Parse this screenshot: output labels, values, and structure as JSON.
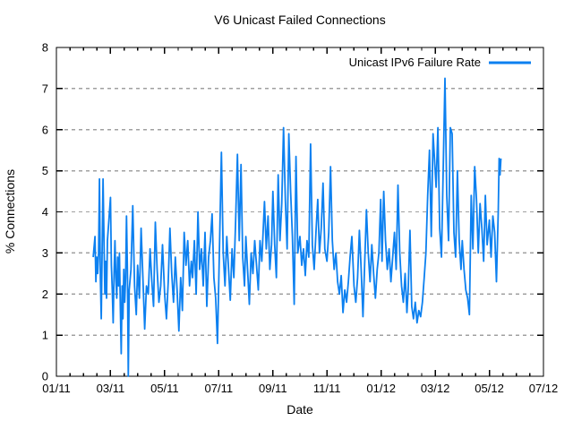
{
  "chart_data": {
    "type": "line",
    "title": "V6 Unicast Failed Connections",
    "xlabel": "Date",
    "ylabel": "% Connections",
    "legend": {
      "label": "Unicast IPv6 Failure Rate",
      "position": "top-right-inside"
    },
    "grid": "horizontal-dashed",
    "ylim": [
      0,
      8
    ],
    "y_ticks": [
      0,
      1,
      2,
      3,
      4,
      5,
      6,
      7,
      8
    ],
    "x_range_months": [
      "01/11",
      "07/12"
    ],
    "x_tick_labels": [
      "01/11",
      "03/11",
      "05/11",
      "07/11",
      "09/11",
      "11/11",
      "01/12",
      "03/12",
      "05/12",
      "07/12"
    ],
    "x_minor_tick_interval_months": 0.5,
    "colors": {
      "line": "#0C80F0",
      "grid": "#A0A0A0",
      "axis": "#000000",
      "text": "#000000",
      "background": "#FFFFFF"
    },
    "series": [
      {
        "name": "Unicast IPv6 Failure Rate",
        "points": [
          [
            "2011-02-12",
            2.9
          ],
          [
            "2011-02-14",
            3.4
          ],
          [
            "2011-02-15",
            2.3
          ],
          [
            "2011-02-16",
            2.9
          ],
          [
            "2011-02-17",
            2.5
          ],
          [
            "2011-02-18",
            3.0
          ],
          [
            "2011-02-19",
            4.8
          ],
          [
            "2011-02-20",
            2.4
          ],
          [
            "2011-02-21",
            1.4
          ],
          [
            "2011-02-22",
            3.1
          ],
          [
            "2011-02-23",
            4.8
          ],
          [
            "2011-02-24",
            3.4
          ],
          [
            "2011-02-25",
            2.0
          ],
          [
            "2011-02-26",
            2.8
          ],
          [
            "2011-02-27",
            1.9
          ],
          [
            "2011-02-28",
            3.3
          ],
          [
            "2011-03-01",
            4.35
          ],
          [
            "2011-03-02",
            2.7
          ],
          [
            "2011-03-03",
            2.1
          ],
          [
            "2011-03-04",
            1.3
          ],
          [
            "2011-03-05",
            2.5
          ],
          [
            "2011-03-06",
            3.3
          ],
          [
            "2011-03-07",
            2.4
          ],
          [
            "2011-03-08",
            1.9
          ],
          [
            "2011-03-09",
            2.9
          ],
          [
            "2011-03-10",
            2.2
          ],
          [
            "2011-03-11",
            3.0
          ],
          [
            "2011-03-12",
            1.7
          ],
          [
            "2011-03-13",
            0.55
          ],
          [
            "2011-03-14",
            2.2
          ],
          [
            "2011-03-15",
            1.4
          ],
          [
            "2011-03-16",
            2.6
          ],
          [
            "2011-03-17",
            1.8
          ],
          [
            "2011-03-18",
            2.4
          ],
          [
            "2011-03-19",
            3.9
          ],
          [
            "2011-03-20",
            2.6
          ],
          [
            "2011-03-21",
            0.0
          ],
          [
            "2011-03-22",
            2.1
          ],
          [
            "2011-03-24",
            2.6
          ],
          [
            "2011-03-26",
            4.15
          ],
          [
            "2011-03-28",
            2.2
          ],
          [
            "2011-03-30",
            1.5
          ],
          [
            "2011-04-01",
            2.7
          ],
          [
            "2011-04-03",
            1.9
          ],
          [
            "2011-04-05",
            3.6
          ],
          [
            "2011-04-07",
            2.4
          ],
          [
            "2011-04-09",
            1.15
          ],
          [
            "2011-04-11",
            2.2
          ],
          [
            "2011-04-13",
            2.0
          ],
          [
            "2011-04-15",
            3.1
          ],
          [
            "2011-04-17",
            2.3
          ],
          [
            "2011-04-19",
            1.7
          ],
          [
            "2011-04-21",
            3.75
          ],
          [
            "2011-04-23",
            2.6
          ],
          [
            "2011-04-25",
            1.8
          ],
          [
            "2011-04-27",
            2.2
          ],
          [
            "2011-04-29",
            3.2
          ],
          [
            "2011-05-01",
            2.0
          ],
          [
            "2011-05-03",
            1.4
          ],
          [
            "2011-05-05",
            2.3
          ],
          [
            "2011-05-07",
            3.6
          ],
          [
            "2011-05-09",
            2.5
          ],
          [
            "2011-05-11",
            1.8
          ],
          [
            "2011-05-13",
            2.9
          ],
          [
            "2011-05-15",
            2.1
          ],
          [
            "2011-05-17",
            1.1
          ],
          [
            "2011-05-19",
            2.4
          ],
          [
            "2011-05-21",
            1.6
          ],
          [
            "2011-05-23",
            3.5
          ],
          [
            "2011-05-25",
            2.7
          ],
          [
            "2011-05-27",
            3.3
          ],
          [
            "2011-05-29",
            2.2
          ],
          [
            "2011-05-31",
            2.8
          ],
          [
            "2011-06-02",
            2.4
          ],
          [
            "2011-06-04",
            3.3
          ],
          [
            "2011-06-06",
            2.0
          ],
          [
            "2011-06-08",
            4.0
          ],
          [
            "2011-06-10",
            2.6
          ],
          [
            "2011-06-12",
            3.1
          ],
          [
            "2011-06-14",
            2.2
          ],
          [
            "2011-06-16",
            3.5
          ],
          [
            "2011-06-18",
            1.7
          ],
          [
            "2011-06-20",
            2.9
          ],
          [
            "2011-06-22",
            3.3
          ],
          [
            "2011-06-24",
            3.95
          ],
          [
            "2011-06-26",
            2.4
          ],
          [
            "2011-06-28",
            1.9
          ],
          [
            "2011-06-30",
            0.8
          ],
          [
            "2011-07-02",
            3.3
          ],
          [
            "2011-07-04",
            5.45
          ],
          [
            "2011-07-06",
            3.0
          ],
          [
            "2011-07-08",
            2.2
          ],
          [
            "2011-07-10",
            3.4
          ],
          [
            "2011-07-12",
            2.6
          ],
          [
            "2011-07-14",
            1.85
          ],
          [
            "2011-07-16",
            3.1
          ],
          [
            "2011-07-18",
            2.4
          ],
          [
            "2011-07-20",
            3.8
          ],
          [
            "2011-07-22",
            5.4
          ],
          [
            "2011-07-24",
            3.3
          ],
          [
            "2011-07-26",
            5.15
          ],
          [
            "2011-07-28",
            2.9
          ],
          [
            "2011-07-30",
            2.2
          ],
          [
            "2011-08-01",
            3.4
          ],
          [
            "2011-08-03",
            2.6
          ],
          [
            "2011-08-05",
            1.75
          ],
          [
            "2011-08-07",
            3.0
          ],
          [
            "2011-08-09",
            2.5
          ],
          [
            "2011-08-11",
            3.3
          ],
          [
            "2011-08-13",
            2.7
          ],
          [
            "2011-08-15",
            2.1
          ],
          [
            "2011-08-17",
            3.3
          ],
          [
            "2011-08-19",
            2.8
          ],
          [
            "2011-08-22",
            4.25
          ],
          [
            "2011-08-24",
            3.1
          ],
          [
            "2011-08-26",
            3.9
          ],
          [
            "2011-08-28",
            2.6
          ],
          [
            "2011-08-30",
            3.2
          ],
          [
            "2011-09-01",
            4.5
          ],
          [
            "2011-09-03",
            3.2
          ],
          [
            "2011-09-05",
            2.4
          ],
          [
            "2011-09-07",
            4.9
          ],
          [
            "2011-09-09",
            3.3
          ],
          [
            "2011-09-11",
            4.2
          ],
          [
            "2011-09-13",
            6.05
          ],
          [
            "2011-09-15",
            4.3
          ],
          [
            "2011-09-17",
            3.1
          ],
          [
            "2011-09-19",
            5.9
          ],
          [
            "2011-09-21",
            4.5
          ],
          [
            "2011-09-23",
            3.4
          ],
          [
            "2011-09-25",
            1.75
          ],
          [
            "2011-09-27",
            5.35
          ],
          [
            "2011-09-29",
            3.0
          ],
          [
            "2011-10-01",
            3.4
          ],
          [
            "2011-10-03",
            2.7
          ],
          [
            "2011-10-05",
            3.1
          ],
          [
            "2011-10-07",
            2.45
          ],
          [
            "2011-10-09",
            3.3
          ],
          [
            "2011-10-11",
            2.9
          ],
          [
            "2011-10-13",
            5.65
          ],
          [
            "2011-10-15",
            3.2
          ],
          [
            "2011-10-17",
            2.6
          ],
          [
            "2011-10-19",
            3.5
          ],
          [
            "2011-10-21",
            4.3
          ],
          [
            "2011-10-23",
            3.0
          ],
          [
            "2011-10-25",
            3.6
          ],
          [
            "2011-10-27",
            4.7
          ],
          [
            "2011-10-29",
            3.1
          ],
          [
            "2011-11-01",
            2.8
          ],
          [
            "2011-11-03",
            3.5
          ],
          [
            "2011-11-05",
            5.1
          ],
          [
            "2011-11-07",
            3.3
          ],
          [
            "2011-11-09",
            2.6
          ],
          [
            "2011-11-11",
            3.0
          ],
          [
            "2011-11-13",
            2.3
          ],
          [
            "2011-11-15",
            2.0
          ],
          [
            "2011-11-17",
            2.45
          ],
          [
            "2011-11-19",
            1.55
          ],
          [
            "2011-11-21",
            2.1
          ],
          [
            "2011-11-23",
            1.8
          ],
          [
            "2011-11-25",
            2.3
          ],
          [
            "2011-11-27",
            2.9
          ],
          [
            "2011-11-29",
            3.4
          ],
          [
            "2011-12-01",
            2.2
          ],
          [
            "2011-12-03",
            1.8
          ],
          [
            "2011-12-05",
            2.4
          ],
          [
            "2011-12-07",
            3.55
          ],
          [
            "2011-12-09",
            2.6
          ],
          [
            "2011-12-11",
            1.45
          ],
          [
            "2011-12-13",
            2.8
          ],
          [
            "2011-12-15",
            4.05
          ],
          [
            "2011-12-17",
            3.0
          ],
          [
            "2011-12-19",
            2.3
          ],
          [
            "2011-12-21",
            3.2
          ],
          [
            "2011-12-23",
            2.5
          ],
          [
            "2011-12-25",
            1.9
          ],
          [
            "2011-12-27",
            2.6
          ],
          [
            "2011-12-29",
            3.0
          ],
          [
            "2011-12-31",
            4.3
          ],
          [
            "2012-01-02",
            2.8
          ],
          [
            "2012-01-04",
            4.5
          ],
          [
            "2012-01-06",
            3.3
          ],
          [
            "2012-01-08",
            2.6
          ],
          [
            "2012-01-10",
            3.1
          ],
          [
            "2012-01-12",
            2.3
          ],
          [
            "2012-01-14",
            2.9
          ],
          [
            "2012-01-16",
            3.5
          ],
          [
            "2012-01-18",
            2.6
          ],
          [
            "2012-01-20",
            4.65
          ],
          [
            "2012-01-22",
            3.0
          ],
          [
            "2012-01-24",
            2.2
          ],
          [
            "2012-01-26",
            1.8
          ],
          [
            "2012-01-28",
            2.5
          ],
          [
            "2012-01-30",
            1.55
          ],
          [
            "2012-02-01",
            2.1
          ],
          [
            "2012-02-03",
            3.55
          ],
          [
            "2012-02-05",
            1.7
          ],
          [
            "2012-02-07",
            1.4
          ],
          [
            "2012-02-09",
            1.8
          ],
          [
            "2012-02-11",
            1.3
          ],
          [
            "2012-02-13",
            1.6
          ],
          [
            "2012-02-15",
            1.45
          ],
          [
            "2012-02-17",
            1.8
          ],
          [
            "2012-02-19",
            2.4
          ],
          [
            "2012-02-21",
            3.0
          ],
          [
            "2012-02-23",
            4.4
          ],
          [
            "2012-02-25",
            5.5
          ],
          [
            "2012-02-27",
            3.4
          ],
          [
            "2012-02-29",
            5.9
          ],
          [
            "2012-03-02",
            4.6
          ],
          [
            "2012-03-04",
            6.05
          ],
          [
            "2012-03-06",
            3.6
          ],
          [
            "2012-03-08",
            2.9
          ],
          [
            "2012-03-10",
            5.0
          ],
          [
            "2012-03-12",
            7.25
          ],
          [
            "2012-03-14",
            4.4
          ],
          [
            "2012-03-16",
            3.3
          ],
          [
            "2012-03-18",
            6.05
          ],
          [
            "2012-03-20",
            5.9
          ],
          [
            "2012-03-22",
            3.5
          ],
          [
            "2012-03-24",
            2.9
          ],
          [
            "2012-03-26",
            5.0
          ],
          [
            "2012-03-28",
            3.3
          ],
          [
            "2012-03-30",
            2.6
          ],
          [
            "2012-04-01",
            3.3
          ],
          [
            "2012-04-03",
            2.6
          ],
          [
            "2012-04-05",
            2.1
          ],
          [
            "2012-04-07",
            1.9
          ],
          [
            "2012-04-09",
            1.5
          ],
          [
            "2012-04-11",
            4.4
          ],
          [
            "2012-04-13",
            3.1
          ],
          [
            "2012-04-15",
            5.1
          ],
          [
            "2012-04-17",
            4.3
          ],
          [
            "2012-04-19",
            3.0
          ],
          [
            "2012-04-21",
            4.2
          ],
          [
            "2012-04-23",
            3.6
          ],
          [
            "2012-04-25",
            2.8
          ],
          [
            "2012-04-27",
            4.4
          ],
          [
            "2012-04-29",
            3.2
          ],
          [
            "2012-05-01",
            3.8
          ],
          [
            "2012-05-03",
            2.9
          ],
          [
            "2012-05-05",
            3.9
          ],
          [
            "2012-05-07",
            3.5
          ],
          [
            "2012-05-09",
            2.3
          ],
          [
            "2012-05-11",
            4.0
          ],
          [
            "2012-05-12",
            5.3
          ],
          [
            "2012-05-13",
            4.9
          ],
          [
            "2012-05-14",
            5.3
          ]
        ]
      }
    ]
  }
}
